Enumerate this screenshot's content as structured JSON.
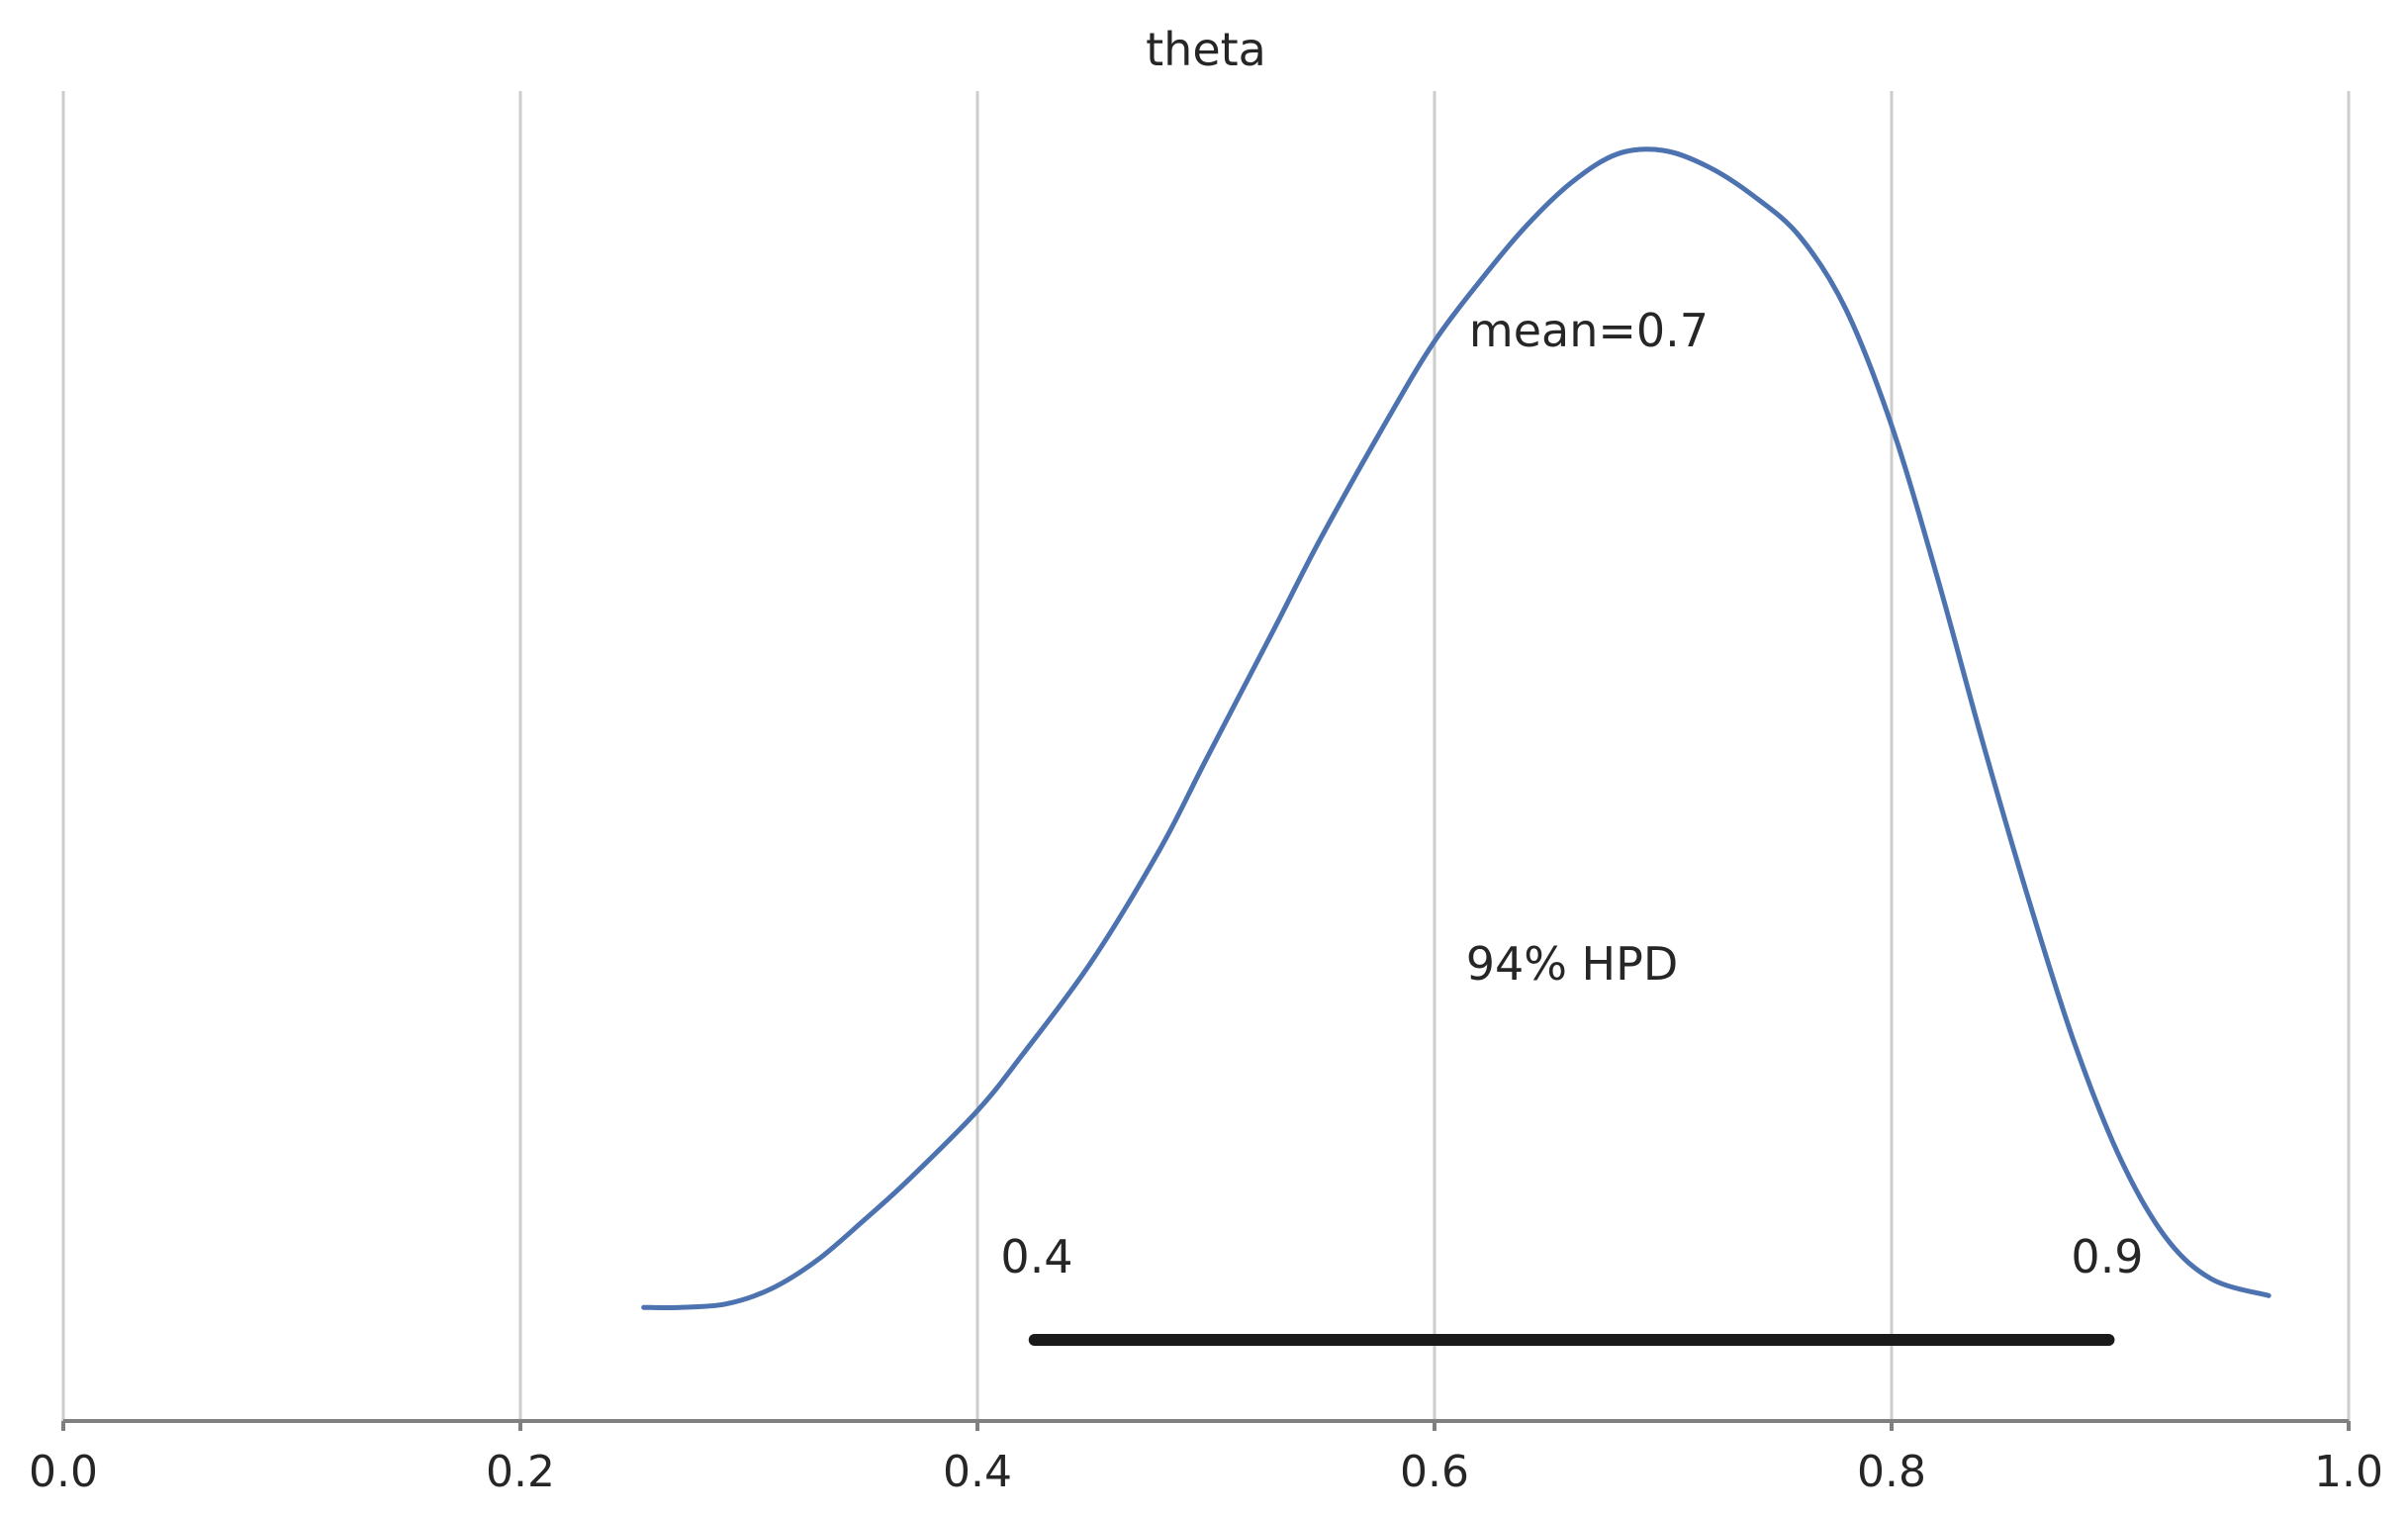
{
  "chart_data": {
    "type": "line",
    "title": "theta",
    "xlabel": "",
    "ylabel": "",
    "xlim": [
      0.0,
      1.0
    ],
    "x_ticks": [
      "0.0",
      "0.2",
      "0.4",
      "0.6",
      "0.8",
      "1.0"
    ],
    "grid": "vertical",
    "line_color": "#4c72b0",
    "hpd_color": "#1a1a1a",
    "density": {
      "x": [
        0.254,
        0.27,
        0.29,
        0.31,
        0.33,
        0.35,
        0.37,
        0.4,
        0.42,
        0.45,
        0.48,
        0.5,
        0.53,
        0.55,
        0.58,
        0.6,
        0.62,
        0.64,
        0.66,
        0.68,
        0.7,
        0.72,
        0.74,
        0.76,
        0.78,
        0.8,
        0.82,
        0.84,
        0.86,
        0.88,
        0.9,
        0.92,
        0.94,
        0.965
      ],
      "y": [
        0.024,
        0.024,
        0.027,
        0.04,
        0.064,
        0.097,
        0.132,
        0.19,
        0.238,
        0.316,
        0.411,
        0.486,
        0.597,
        0.672,
        0.775,
        0.839,
        0.89,
        0.936,
        0.973,
        0.997,
        1.0,
        0.986,
        0.961,
        0.927,
        0.866,
        0.768,
        0.64,
        0.5,
        0.368,
        0.247,
        0.15,
        0.083,
        0.048,
        0.034
      ]
    },
    "mean_label": "mean=0.7",
    "hpd_label": "94% HPD",
    "hpd_interval": [
      0.425,
      0.895
    ],
    "hpd_low_label": "0.4",
    "hpd_high_label": "0.9"
  }
}
